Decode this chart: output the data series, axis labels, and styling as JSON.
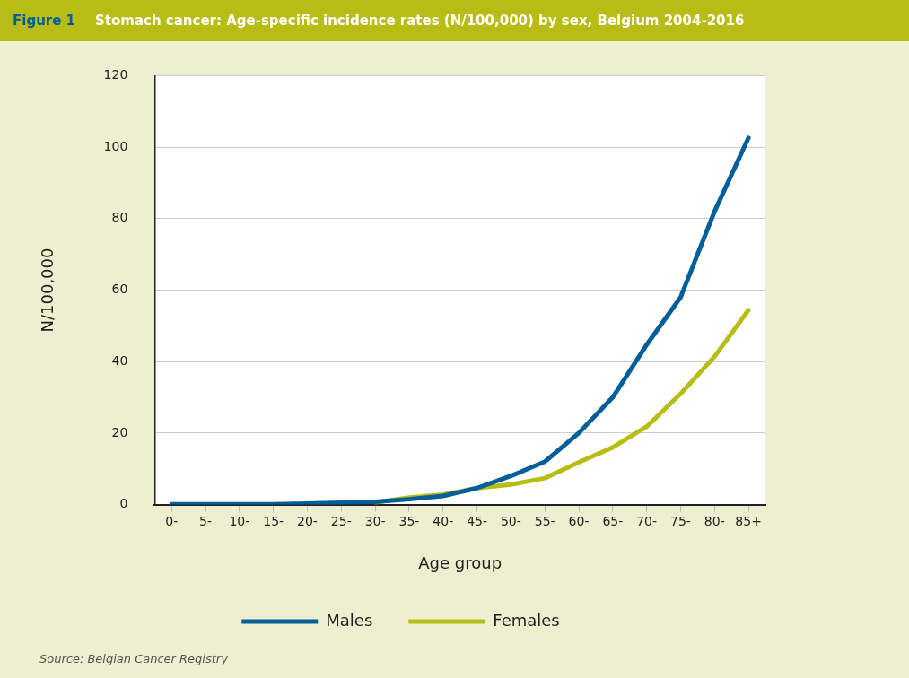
{
  "chart_data": {
    "type": "line",
    "title": "Stomach cancer: Age-specific incidence rates (N/100,000) by sex, Belgium 2004-2016",
    "xlabel": "Age group",
    "ylabel": "N/100,000",
    "annotations": [
      "Figure 1",
      "Source: Belgian Cancer Registry"
    ],
    "categories": [
      "0-",
      "5-",
      "10-",
      "15-",
      "20-",
      "25-",
      "30-",
      "35-",
      "40-",
      "45-",
      "50-",
      "55-",
      "60-",
      "65-",
      "70-",
      "75-",
      "80-",
      "85+"
    ],
    "series": [
      {
        "name": "Males",
        "color": "#005f9a",
        "values": [
          0.1,
          0.1,
          0.1,
          0.1,
          0.3,
          0.5,
          0.8,
          1.5,
          2.4,
          4.6,
          8,
          12,
          20,
          30,
          44.7,
          58,
          82,
          102.6
        ]
      },
      {
        "name": "Females",
        "color": "#b8bd14",
        "values": [
          null,
          null,
          null,
          null,
          null,
          null,
          0.6,
          2,
          2.8,
          4.6,
          5.6,
          7.4,
          11.8,
          16,
          21.8,
          31,
          41.4,
          54.4
        ]
      }
    ],
    "ylim": [
      0,
      120
    ],
    "yticks": [
      0,
      20,
      40,
      60,
      80,
      100,
      120
    ],
    "grid": "y",
    "legend": "bottom",
    "marker": "none",
    "line_style": "solid"
  }
}
